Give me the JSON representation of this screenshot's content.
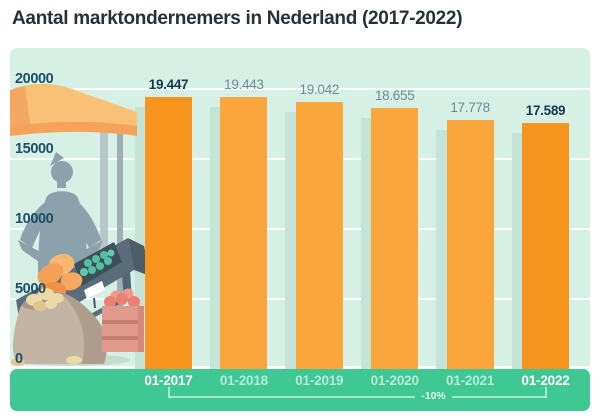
{
  "title": "Aantal marktondernemers in Nederland (2017-2022)",
  "colors": {
    "page_bg": "#ffffff",
    "panel_bg": "#d7f0e5",
    "band_bg": "#3fc794",
    "bar_light": "#f9a73c",
    "bar_dark": "#f7941e",
    "bar_shadow": "#c5e4d8",
    "gridline": "#ffffff",
    "title_text": "#27313a",
    "ytick_text": "#1d4f66",
    "value_label_emphasis": "#16384d",
    "value_label_muted": "#6a8c98",
    "xtick_emphasis": "#ffffff",
    "xtick_muted": "rgba(255,255,255,0.62)",
    "annotation_text": "rgba(255,255,255,0.85)",
    "bracket_line": "rgba(255,255,255,0.55)"
  },
  "chart_data": {
    "type": "bar",
    "title": "Aantal marktondernemers in Nederland (2017-2022)",
    "categories": [
      "01-2017",
      "01-2018",
      "01-2019",
      "01-2020",
      "01-2021",
      "01-2022"
    ],
    "values": [
      19447,
      19443,
      19042,
      18655,
      17778,
      17589
    ],
    "value_labels": [
      "19.447",
      "19.443",
      "19.042",
      "18.655",
      "17.778",
      "17.589"
    ],
    "emphasized": [
      true,
      false,
      false,
      false,
      false,
      true
    ],
    "yticks": [
      {
        "value": 0,
        "label": "0"
      },
      {
        "value": 5000,
        "label": "5000"
      },
      {
        "value": 10000,
        "label": "10000"
      },
      {
        "value": 15000,
        "label": "15000"
      },
      {
        "value": 20000,
        "label": "20000"
      }
    ],
    "ylim": [
      0,
      20000
    ],
    "grid": true,
    "legend": false,
    "xlabel": "",
    "ylabel": "",
    "annotation": {
      "text": "-10%",
      "from": "01-2017",
      "to": "01-2022"
    }
  },
  "illustration": {
    "name": "market-stall",
    "parts": [
      "awning",
      "stall-poles",
      "vendor-silhouette",
      "produce-counter",
      "orange-produce",
      "teal-produce",
      "price-tag",
      "potato-sack",
      "apple-crate"
    ]
  }
}
